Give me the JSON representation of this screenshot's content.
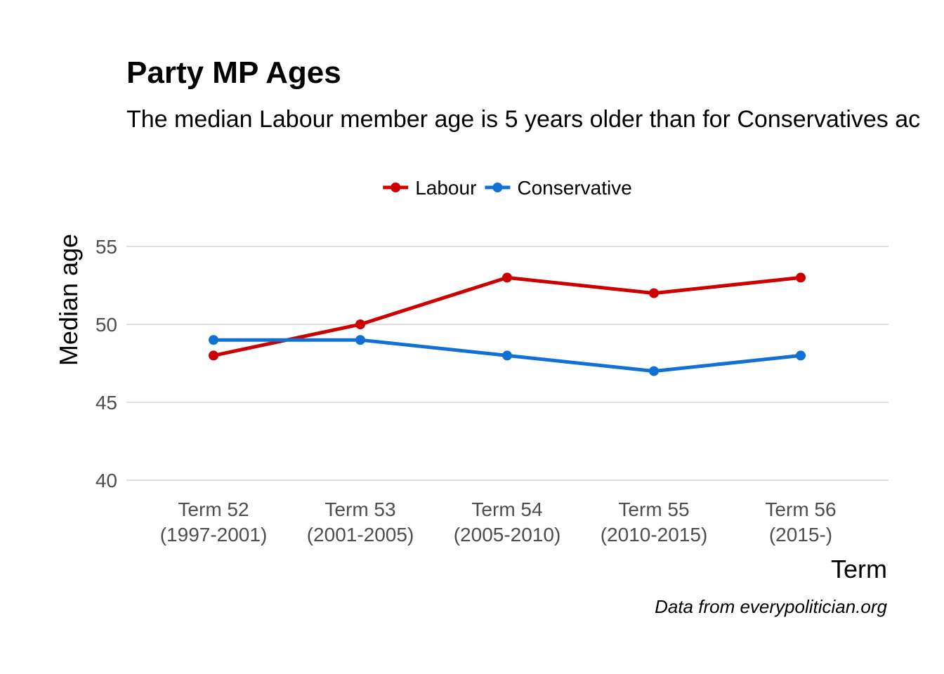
{
  "chart_data": {
    "type": "line",
    "title": "Party MP Ages",
    "subtitle": "The median Labour member age is 5 years older than for Conservatives ac",
    "xlabel": "Term",
    "ylabel": "Median age",
    "caption": "Data from everypolitician.org",
    "categories": [
      [
        "Term 52",
        "(1997-2001)"
      ],
      [
        "Term 53",
        "(2001-2005)"
      ],
      [
        "Term 54",
        "(2005-2010)"
      ],
      [
        "Term 55",
        "(2010-2015)"
      ],
      [
        "Term 56",
        "(2015-)"
      ]
    ],
    "ylim": [
      40,
      55
    ],
    "yticks": [
      40,
      45,
      50,
      55
    ],
    "grid": true,
    "legend_position": "top-center",
    "series": [
      {
        "name": "Labour",
        "color": "#cc0000",
        "values": [
          48,
          50,
          53,
          52,
          53
        ]
      },
      {
        "name": "Conservative",
        "color": "#1170d4",
        "values": [
          49,
          49,
          48,
          47,
          48
        ]
      }
    ]
  }
}
